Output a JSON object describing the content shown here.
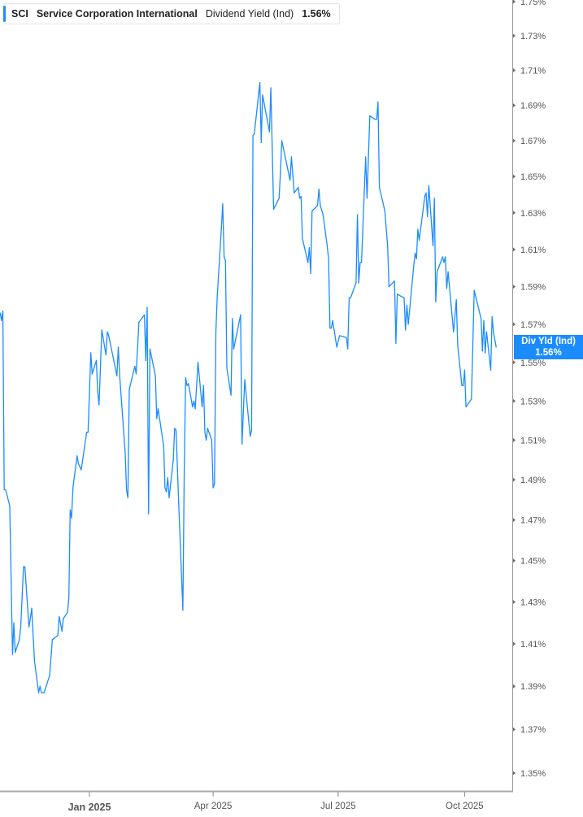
{
  "legend": {
    "ticker": "SCI",
    "company": "Service Corporation International",
    "metric": "Dividend Yield (Ind)",
    "value": "1.56%",
    "accent_color": "#1a8cff"
  },
  "last_value_label": {
    "name": "Div Yld (Ind)",
    "value": "1.56%"
  },
  "chart_data": {
    "type": "line",
    "title": "",
    "xlabel": "",
    "ylabel": "",
    "y_scale": "log",
    "ylim": [
      1.35,
      1.75
    ],
    "y_axis_position": "right",
    "grid": false,
    "line_color": "#1a8cff",
    "y_ticks": [
      "1.35%",
      "1.37%",
      "1.39%",
      "1.41%",
      "1.43%",
      "1.45%",
      "1.47%",
      "1.49%",
      "1.51%",
      "1.53%",
      "1.55%",
      "1.57%",
      "1.59%",
      "1.61%",
      "1.63%",
      "1.65%",
      "1.67%",
      "1.69%",
      "1.71%",
      "1.73%",
      "1.75%"
    ],
    "x_ticks": [
      {
        "label": "Jan 2025",
        "date": "2025-01-01",
        "major": true
      },
      {
        "label": "Apr 2025",
        "date": "2025-04-01",
        "major": false
      },
      {
        "label": "Jul 2025",
        "date": "2025-07-01",
        "major": false
      },
      {
        "label": "Oct 2025",
        "date": "2025-10-01",
        "major": false
      }
    ],
    "series": [
      {
        "points": [
          [
            "2024-10-28",
            1.576
          ],
          [
            "2024-10-29",
            1.572
          ],
          [
            "2024-10-30",
            1.577
          ],
          [
            "2024-10-31",
            1.485
          ],
          [
            "2024-11-01",
            1.485
          ],
          [
            "2024-11-04",
            1.477
          ],
          [
            "2024-11-06",
            1.405
          ],
          [
            "2024-11-07",
            1.42
          ],
          [
            "2024-11-08",
            1.406
          ],
          [
            "2024-11-11",
            1.412
          ],
          [
            "2024-11-12",
            1.418
          ],
          [
            "2024-11-14",
            1.447
          ],
          [
            "2024-11-15",
            1.447
          ],
          [
            "2024-11-18",
            1.418
          ],
          [
            "2024-11-19",
            1.422
          ],
          [
            "2024-11-20",
            1.427
          ],
          [
            "2024-11-22",
            1.402
          ],
          [
            "2024-11-25",
            1.387
          ],
          [
            "2024-11-26",
            1.39
          ],
          [
            "2024-11-27",
            1.387
          ],
          [
            "2024-11-29",
            1.387
          ],
          [
            "2024-12-03",
            1.395
          ],
          [
            "2024-12-05",
            1.412
          ],
          [
            "2024-12-09",
            1.414
          ],
          [
            "2024-12-10",
            1.423
          ],
          [
            "2024-12-12",
            1.416
          ],
          [
            "2024-12-13",
            1.422
          ],
          [
            "2024-12-16",
            1.425
          ],
          [
            "2024-12-17",
            1.432
          ],
          [
            "2024-12-18",
            1.475
          ],
          [
            "2024-12-19",
            1.471
          ],
          [
            "2024-12-20",
            1.486
          ],
          [
            "2024-12-23",
            1.502
          ],
          [
            "2024-12-24",
            1.498
          ],
          [
            "2024-12-26",
            1.495
          ],
          [
            "2024-12-30",
            1.514
          ],
          [
            "2024-12-31",
            1.514
          ],
          [
            "2025-01-02",
            1.555
          ],
          [
            "2025-01-03",
            1.544
          ],
          [
            "2025-01-06",
            1.551
          ],
          [
            "2025-01-07",
            1.535
          ],
          [
            "2025-01-08",
            1.528
          ],
          [
            "2025-01-10",
            1.567
          ],
          [
            "2025-01-13",
            1.554
          ],
          [
            "2025-01-14",
            1.566
          ],
          [
            "2025-01-15",
            1.564
          ],
          [
            "2025-01-21",
            1.543
          ],
          [
            "2025-01-22",
            1.558
          ],
          [
            "2025-01-23",
            1.543
          ],
          [
            "2025-01-27",
            1.504
          ],
          [
            "2025-01-28",
            1.485
          ],
          [
            "2025-01-29",
            1.481
          ],
          [
            "2025-01-30",
            1.536
          ],
          [
            "2025-02-03",
            1.548
          ],
          [
            "2025-02-04",
            1.544
          ],
          [
            "2025-02-06",
            1.571
          ],
          [
            "2025-02-10",
            1.575
          ],
          [
            "2025-02-11",
            1.551
          ],
          [
            "2025-02-12",
            1.579
          ],
          [
            "2025-02-13",
            1.473
          ],
          [
            "2025-02-14",
            1.557
          ],
          [
            "2025-02-18",
            1.543
          ],
          [
            "2025-02-19",
            1.521
          ],
          [
            "2025-02-20",
            1.526
          ],
          [
            "2025-02-24",
            1.507
          ],
          [
            "2025-02-25",
            1.486
          ],
          [
            "2025-02-26",
            1.484
          ],
          [
            "2025-02-27",
            1.491
          ],
          [
            "2025-02-28",
            1.481
          ],
          [
            "2025-03-03",
            1.5
          ],
          [
            "2025-03-04",
            1.516
          ],
          [
            "2025-03-05",
            1.515
          ],
          [
            "2025-03-07",
            1.478
          ],
          [
            "2025-03-10",
            1.426
          ],
          [
            "2025-03-11",
            1.495
          ],
          [
            "2025-03-12",
            1.542
          ],
          [
            "2025-03-13",
            1.538
          ],
          [
            "2025-03-14",
            1.539
          ],
          [
            "2025-03-17",
            1.527
          ],
          [
            "2025-03-18",
            1.53
          ],
          [
            "2025-03-19",
            1.526
          ],
          [
            "2025-03-21",
            1.55
          ],
          [
            "2025-03-24",
            1.527
          ],
          [
            "2025-03-25",
            1.538
          ],
          [
            "2025-03-26",
            1.514
          ],
          [
            "2025-03-27",
            1.51
          ],
          [
            "2025-03-28",
            1.516
          ],
          [
            "2025-03-31",
            1.51
          ],
          [
            "2025-04-01",
            1.486
          ],
          [
            "2025-04-02",
            1.488
          ],
          [
            "2025-04-03",
            1.566
          ],
          [
            "2025-04-04",
            1.585
          ],
          [
            "2025-04-07",
            1.621
          ],
          [
            "2025-04-08",
            1.635
          ],
          [
            "2025-04-09",
            1.606
          ],
          [
            "2025-04-10",
            1.604
          ],
          [
            "2025-04-11",
            1.547
          ],
          [
            "2025-04-14",
            1.533
          ],
          [
            "2025-04-15",
            1.573
          ],
          [
            "2025-04-16",
            1.557
          ],
          [
            "2025-04-21",
            1.575
          ],
          [
            "2025-04-22",
            1.508
          ],
          [
            "2025-04-24",
            1.541
          ],
          [
            "2025-04-28",
            1.512
          ],
          [
            "2025-04-29",
            1.515
          ],
          [
            "2025-04-30",
            1.673
          ],
          [
            "2025-05-01",
            1.674
          ],
          [
            "2025-05-05",
            1.703
          ],
          [
            "2025-05-06",
            1.669
          ],
          [
            "2025-05-07",
            1.696
          ],
          [
            "2025-05-12",
            1.675
          ],
          [
            "2025-05-13",
            1.7
          ],
          [
            "2025-05-15",
            1.632
          ],
          [
            "2025-05-19",
            1.638
          ],
          [
            "2025-05-20",
            1.652
          ],
          [
            "2025-05-21",
            1.67
          ],
          [
            "2025-05-27",
            1.648
          ],
          [
            "2025-05-28",
            1.661
          ],
          [
            "2025-05-30",
            1.641
          ],
          [
            "2025-06-02",
            1.644
          ],
          [
            "2025-06-03",
            1.638
          ],
          [
            "2025-06-04",
            1.639
          ],
          [
            "2025-06-05",
            1.616
          ],
          [
            "2025-06-09",
            1.603
          ],
          [
            "2025-06-10",
            1.611
          ],
          [
            "2025-06-11",
            1.597
          ],
          [
            "2025-06-12",
            1.631
          ],
          [
            "2025-06-16",
            1.634
          ],
          [
            "2025-06-17",
            1.643
          ],
          [
            "2025-06-18",
            1.634
          ],
          [
            "2025-06-20",
            1.629
          ],
          [
            "2025-06-23",
            1.612
          ],
          [
            "2025-06-24",
            1.605
          ],
          [
            "2025-06-25",
            1.568
          ],
          [
            "2025-06-26",
            1.568
          ],
          [
            "2025-06-27",
            1.572
          ],
          [
            "2025-06-30",
            1.558
          ],
          [
            "2025-07-02",
            1.564
          ],
          [
            "2025-07-07",
            1.563
          ],
          [
            "2025-07-08",
            1.557
          ],
          [
            "2025-07-09",
            1.584
          ],
          [
            "2025-07-10",
            1.584
          ],
          [
            "2025-07-14",
            1.592
          ],
          [
            "2025-07-15",
            1.629
          ],
          [
            "2025-07-16",
            1.592
          ],
          [
            "2025-07-17",
            1.603
          ],
          [
            "2025-07-18",
            1.603
          ],
          [
            "2025-07-21",
            1.661
          ],
          [
            "2025-07-22",
            1.638
          ],
          [
            "2025-07-24",
            1.684
          ],
          [
            "2025-07-28",
            1.682
          ],
          [
            "2025-07-29",
            1.682
          ],
          [
            "2025-07-30",
            1.692
          ],
          [
            "2025-07-31",
            1.644
          ],
          [
            "2025-08-04",
            1.631
          ],
          [
            "2025-08-06",
            1.612
          ],
          [
            "2025-08-07",
            1.59
          ],
          [
            "2025-08-11",
            1.593
          ],
          [
            "2025-08-12",
            1.56
          ],
          [
            "2025-08-13",
            1.586
          ],
          [
            "2025-08-18",
            1.584
          ],
          [
            "2025-08-19",
            1.567
          ],
          [
            "2025-08-20",
            1.58
          ],
          [
            "2025-08-21",
            1.57
          ],
          [
            "2025-08-25",
            1.601
          ],
          [
            "2025-08-26",
            1.608
          ],
          [
            "2025-08-27",
            1.605
          ],
          [
            "2025-08-28",
            1.621
          ],
          [
            "2025-08-29",
            1.615
          ],
          [
            "2025-09-02",
            1.639
          ],
          [
            "2025-09-03",
            1.641
          ],
          [
            "2025-09-04",
            1.628
          ],
          [
            "2025-09-05",
            1.645
          ],
          [
            "2025-09-08",
            1.612
          ],
          [
            "2025-09-09",
            1.638
          ],
          [
            "2025-09-10",
            1.582
          ],
          [
            "2025-09-11",
            1.598
          ],
          [
            "2025-09-15",
            1.606
          ],
          [
            "2025-09-16",
            1.603
          ],
          [
            "2025-09-17",
            1.606
          ],
          [
            "2025-09-18",
            1.589
          ],
          [
            "2025-09-19",
            1.598
          ],
          [
            "2025-09-23",
            1.566
          ],
          [
            "2025-09-25",
            1.583
          ],
          [
            "2025-09-26",
            1.559
          ],
          [
            "2025-09-29",
            1.538
          ],
          [
            "2025-09-30",
            1.538
          ],
          [
            "2025-10-01",
            1.546
          ],
          [
            "2025-10-02",
            1.527
          ],
          [
            "2025-10-06",
            1.531
          ],
          [
            "2025-10-08",
            1.588
          ],
          [
            "2025-10-13",
            1.573
          ],
          [
            "2025-10-14",
            1.556
          ],
          [
            "2025-10-15",
            1.572
          ],
          [
            "2025-10-16",
            1.555
          ],
          [
            "2025-10-17",
            1.566
          ],
          [
            "2025-10-20",
            1.546
          ],
          [
            "2025-10-21",
            1.574
          ],
          [
            "2025-10-22",
            1.566
          ],
          [
            "2025-10-24",
            1.558
          ]
        ]
      }
    ]
  }
}
